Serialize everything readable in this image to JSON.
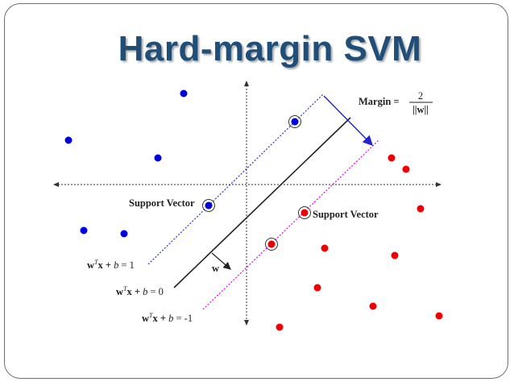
{
  "title": "Hard-margin SVM",
  "labels": {
    "margin_prefix": "Margin =",
    "margin_numerator": "2",
    "margin_denominator": "||w||",
    "support_vector_left": "Support Vector",
    "support_vector_right": "Support Vector",
    "w": "w"
  },
  "equations": {
    "upper": {
      "w": "w",
      "T": "T",
      "rest": "x + ",
      "b": "b",
      "rhs": " = 1"
    },
    "middle": {
      "w": "w",
      "T": "T",
      "rest": "x + ",
      "b": "b",
      "rhs": " = 0"
    },
    "lower": {
      "w": "w",
      "T": "T",
      "rest": "x + ",
      "b": "b",
      "rhs": " = -1"
    }
  },
  "colors": {
    "title": "#1f4e79",
    "class_blue": "#0000dd",
    "class_red": "#ee0000",
    "upper_margin_line": "#3333cc",
    "lower_margin_line": "#ee00ee",
    "decision_line": "#222222"
  }
}
